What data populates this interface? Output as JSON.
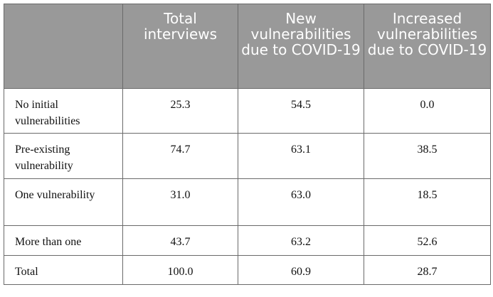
{
  "table": {
    "header": {
      "blank": "",
      "total_interviews": "Total interviews",
      "new_vulnerabilities": "New vulnerabilities due to COVID-19",
      "increased_vulnerabilities": "Increased vulnerabilities due to COVID-19"
    },
    "rows": [
      {
        "label": "No initial vulnerabilities",
        "total": "25.3",
        "new": "54.5",
        "increased": "0.0"
      },
      {
        "label": "Pre-existing vulnerability",
        "total": "74.7",
        "new": "63.1",
        "increased": "38.5"
      },
      {
        "label": "One vulnerability",
        "total": "31.0",
        "new": "63.0",
        "increased": "18.5"
      },
      {
        "label": "More than one",
        "total": "43.7",
        "new": "63.2",
        "increased": "52.6"
      },
      {
        "label": "Total",
        "total": "100.0",
        "new": "60.9",
        "increased": "28.7"
      }
    ]
  }
}
